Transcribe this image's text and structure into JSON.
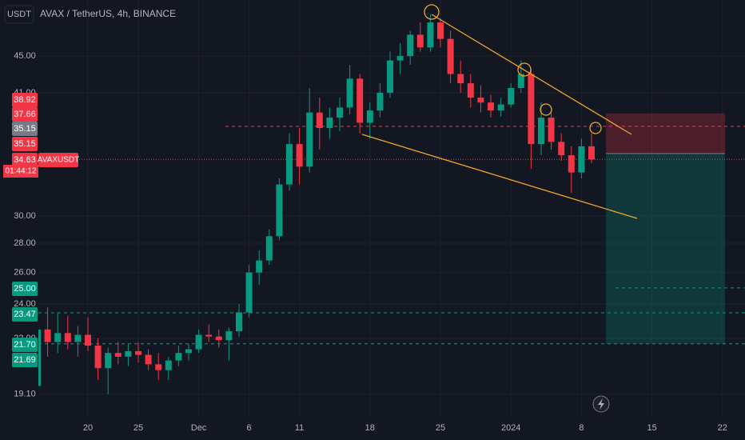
{
  "chart_data": {
    "type": "candlestick",
    "title": "AVAX / TetherUS, 4h, BINANCE",
    "currency": "USDT",
    "symbol": "AVAXUSDT",
    "countdown": "01:44:12",
    "log_scale": true,
    "grid": true,
    "up_color": "#089981",
    "down_color": "#f23645",
    "categories": [
      null,
      null,
      null,
      null,
      null,
      "20",
      null,
      null,
      null,
      null,
      "25",
      null,
      null,
      null,
      null,
      null,
      "Dec",
      null,
      null,
      null,
      null,
      "6",
      null,
      null,
      null,
      null,
      "11",
      null,
      null,
      null,
      null,
      null,
      null,
      "18",
      null,
      null,
      null,
      null,
      null,
      null,
      "25",
      null,
      null,
      null,
      null,
      null,
      null,
      "2024",
      null,
      null,
      null,
      null,
      null,
      null,
      "8",
      null,
      null,
      null,
      null,
      null,
      null,
      "15",
      null,
      null,
      null,
      null,
      null,
      null,
      "22"
    ],
    "open": [
      19.5,
      22.5,
      21.8,
      22.3,
      21.8,
      22.2,
      21.6,
      20.4,
      21.2,
      21.0,
      21.3,
      21.1,
      20.6,
      20.3,
      20.8,
      21.2,
      21.4,
      22.2,
      22.1,
      21.9,
      22.4,
      23.5,
      26.0,
      26.8,
      28.5,
      32.5,
      36.0,
      34.0,
      39.0,
      37.5,
      38.5,
      39.5,
      42.5,
      38.0,
      39.2,
      41.0,
      44.5,
      45.0,
      47.5,
      46.0,
      49.0,
      47.0,
      43.0,
      42.0,
      40.5,
      40.0,
      39.2,
      39.8,
      41.5,
      43.0,
      36.0,
      38.5,
      36.2,
      35.0,
      33.5,
      35.8,
      null,
      null,
      null,
      null,
      null,
      null,
      null,
      null,
      null,
      null,
      null,
      null,
      null
    ],
    "high": [
      23.2,
      23.8,
      23.5,
      23.3,
      22.7,
      23.2,
      22.0,
      21.5,
      21.8,
      21.7,
      21.8,
      21.4,
      21.2,
      21.0,
      21.6,
      21.7,
      22.5,
      22.8,
      22.5,
      22.6,
      24.0,
      26.5,
      27.5,
      29.0,
      33.0,
      37.0,
      37.5,
      41.5,
      40.5,
      39.5,
      40.5,
      44.0,
      43.0,
      40.0,
      42.0,
      45.5,
      46.5,
      48.0,
      49.0,
      50.0,
      49.5,
      48.0,
      44.5,
      43.0,
      41.8,
      40.8,
      40.5,
      42.0,
      44.5,
      43.5,
      40.0,
      39.0,
      37.0,
      35.8,
      36.5,
      37.0,
      null,
      null,
      null,
      null,
      null,
      null,
      null,
      null,
      null,
      null,
      null,
      null,
      null
    ],
    "low": [
      18.9,
      21.0,
      21.2,
      21.4,
      21.0,
      21.3,
      19.8,
      19.1,
      20.6,
      20.5,
      20.7,
      20.3,
      19.8,
      19.8,
      20.5,
      20.8,
      21.2,
      21.8,
      21.5,
      20.8,
      22.1,
      23.2,
      25.2,
      26.5,
      28.2,
      32.0,
      32.5,
      33.5,
      35.5,
      36.5,
      37.2,
      38.8,
      37.0,
      36.5,
      38.5,
      40.5,
      43.0,
      44.0,
      45.5,
      45.5,
      46.0,
      42.0,
      41.0,
      39.5,
      39.0,
      38.5,
      38.6,
      39.5,
      41.0,
      33.8,
      35.0,
      35.5,
      34.5,
      31.8,
      33.0,
      34.3,
      null,
      null,
      null,
      null,
      null,
      null,
      null,
      null,
      null,
      null,
      null,
      null,
      null
    ],
    "close": [
      22.5,
      21.8,
      22.3,
      21.8,
      22.2,
      21.6,
      20.4,
      21.2,
      21.0,
      21.3,
      21.1,
      20.6,
      20.3,
      20.8,
      21.2,
      21.4,
      22.2,
      22.1,
      21.9,
      22.4,
      23.5,
      26.0,
      26.8,
      28.5,
      32.5,
      36.0,
      34.0,
      39.0,
      37.5,
      38.5,
      39.5,
      42.5,
      38.0,
      39.2,
      41.0,
      44.5,
      45.0,
      47.5,
      46.0,
      49.0,
      47.0,
      43.0,
      42.0,
      40.5,
      40.0,
      39.2,
      39.8,
      41.5,
      43.0,
      36.0,
      38.5,
      36.2,
      35.0,
      33.5,
      35.8,
      34.63,
      null,
      null,
      null,
      null,
      null,
      null,
      null,
      null,
      null,
      null,
      null,
      null,
      null
    ],
    "ylim": [
      18.07,
      51.87
    ],
    "yticks": [
      {
        "value": 45,
        "label": "45.00"
      },
      {
        "value": 41,
        "label": "41.00"
      },
      {
        "value": 30,
        "label": "30.00"
      },
      {
        "value": 28,
        "label": "28.00"
      },
      {
        "value": 26,
        "label": "26.00"
      },
      {
        "value": 24,
        "label": "24.00"
      },
      {
        "value": 22,
        "label": "22.00"
      },
      {
        "value": 19.1,
        "label": "19.10"
      }
    ],
    "price_levels": [
      {
        "value": 38.92,
        "label": "38.92",
        "color": "#f23645"
      },
      {
        "value": 37.66,
        "label": "37.66",
        "color": "#f23645"
      },
      {
        "value": 35.15,
        "label": "35.15",
        "color": "#787b86"
      },
      {
        "value": 35.15,
        "label": "35.15",
        "color": "#f23645"
      },
      {
        "value": 34.63,
        "label": "34.63",
        "color": "#f23645"
      },
      {
        "value": 25,
        "label": "25.00",
        "color": "#089981"
      },
      {
        "value": 23.47,
        "label": "23.47",
        "color": "#089981"
      },
      {
        "value": 21.7,
        "label": "21.70",
        "color": "#089981"
      },
      {
        "value": 21.69,
        "label": "21.69",
        "color": "#089981"
      }
    ]
  }
}
